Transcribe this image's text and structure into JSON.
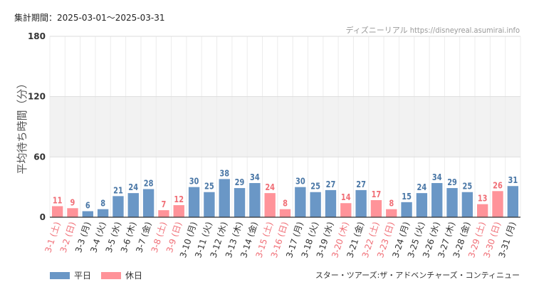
{
  "header": {
    "period": "集計期間：2025-03-01～2025-03-31",
    "credit": "ディズニーリアル https://disneyreal.asumirai.info"
  },
  "footer": {
    "attraction": "スター・ツアーズ:ザ・アドベンチャーズ・コンティニュー"
  },
  "legend": [
    {
      "label": "平日",
      "color": "#6a97c6"
    },
    {
      "label": "休日",
      "color": "#ff9399"
    }
  ],
  "colors": {
    "weekday": "#6a97c6",
    "holiday": "#ff9399",
    "weekday_text": "#4a77a6",
    "holiday_text": "#f06e76",
    "band": "#f2f2f2"
  },
  "chart_data": {
    "type": "bar",
    "title": "",
    "xlabel": "",
    "ylabel": "平均待ち時間（分）",
    "ylim": [
      0,
      180
    ],
    "yticks": [
      0,
      60,
      120,
      180
    ],
    "categories": [
      "3-1 (土)",
      "3-2 (日)",
      "3-3 (月)",
      "3-4 (火)",
      "3-5 (水)",
      "3-6 (木)",
      "3-7 (金)",
      "3-8 (土)",
      "3-9 (日)",
      "3-10 (月)",
      "3-11 (火)",
      "3-12 (水)",
      "3-13 (木)",
      "3-14 (金)",
      "3-15 (土)",
      "3-16 (日)",
      "3-17 (月)",
      "3-18 (火)",
      "3-19 (水)",
      "3-20 (木)",
      "3-21 (金)",
      "3-22 (土)",
      "3-23 (日)",
      "3-24 (月)",
      "3-25 (火)",
      "3-26 (水)",
      "3-27 (木)",
      "3-28 (金)",
      "3-29 (土)",
      "3-30 (日)",
      "3-31 (月)"
    ],
    "values": [
      11,
      9,
      6,
      8,
      21,
      24,
      28,
      7,
      12,
      30,
      25,
      38,
      29,
      34,
      24,
      8,
      30,
      25,
      27,
      14,
      27,
      17,
      8,
      15,
      24,
      34,
      29,
      25,
      13,
      26,
      31
    ],
    "day_type": [
      "holiday",
      "holiday",
      "weekday",
      "weekday",
      "weekday",
      "weekday",
      "weekday",
      "holiday",
      "holiday",
      "weekday",
      "weekday",
      "weekday",
      "weekday",
      "weekday",
      "holiday",
      "holiday",
      "weekday",
      "weekday",
      "weekday",
      "holiday",
      "weekday",
      "holiday",
      "holiday",
      "weekday",
      "weekday",
      "weekday",
      "weekday",
      "weekday",
      "holiday",
      "holiday",
      "weekday"
    ]
  }
}
